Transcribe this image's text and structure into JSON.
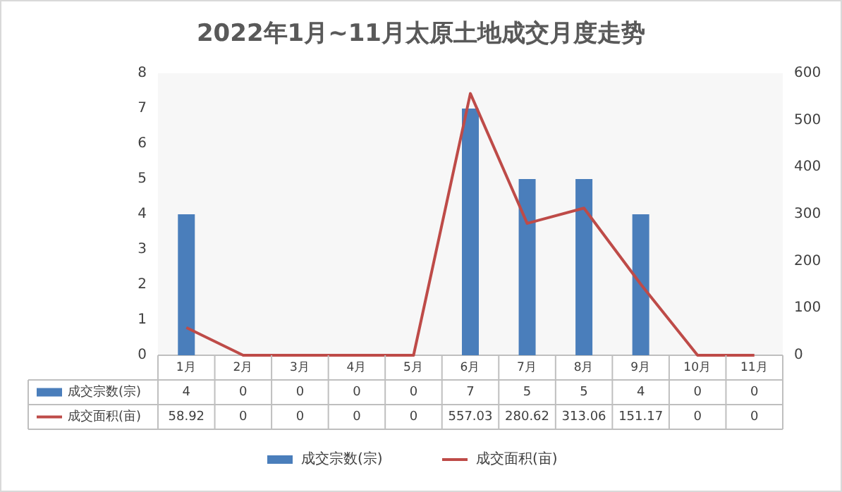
{
  "chart_data": {
    "type": "bar",
    "title": "2022年1月~11月太原土地成交月度走势",
    "categories": [
      "1月",
      "2月",
      "3月",
      "4月",
      "5月",
      "6月",
      "7月",
      "8月",
      "9月",
      "10月",
      "11月"
    ],
    "series": [
      {
        "name": "成交宗数(宗)",
        "color": "#4a7ebb",
        "values": [
          4,
          0,
          0,
          0,
          0,
          7,
          5,
          5,
          4,
          0,
          0
        ]
      },
      {
        "name": "成交面积(亩)",
        "type": "line",
        "axis": "y2",
        "color": "#be4b48",
        "values": [
          58.92,
          0,
          0,
          0,
          0,
          557.03,
          280.62,
          313.06,
          151.17,
          0,
          0
        ]
      }
    ],
    "ylim": [
      0,
      8
    ],
    "yticks": [
      0,
      1,
      2,
      3,
      4,
      5,
      6,
      7,
      8
    ],
    "y2lim": [
      0,
      600
    ],
    "y2ticks": [
      0,
      100,
      200,
      300,
      400,
      500,
      600
    ],
    "data_labels": true,
    "legend": "bottom"
  }
}
